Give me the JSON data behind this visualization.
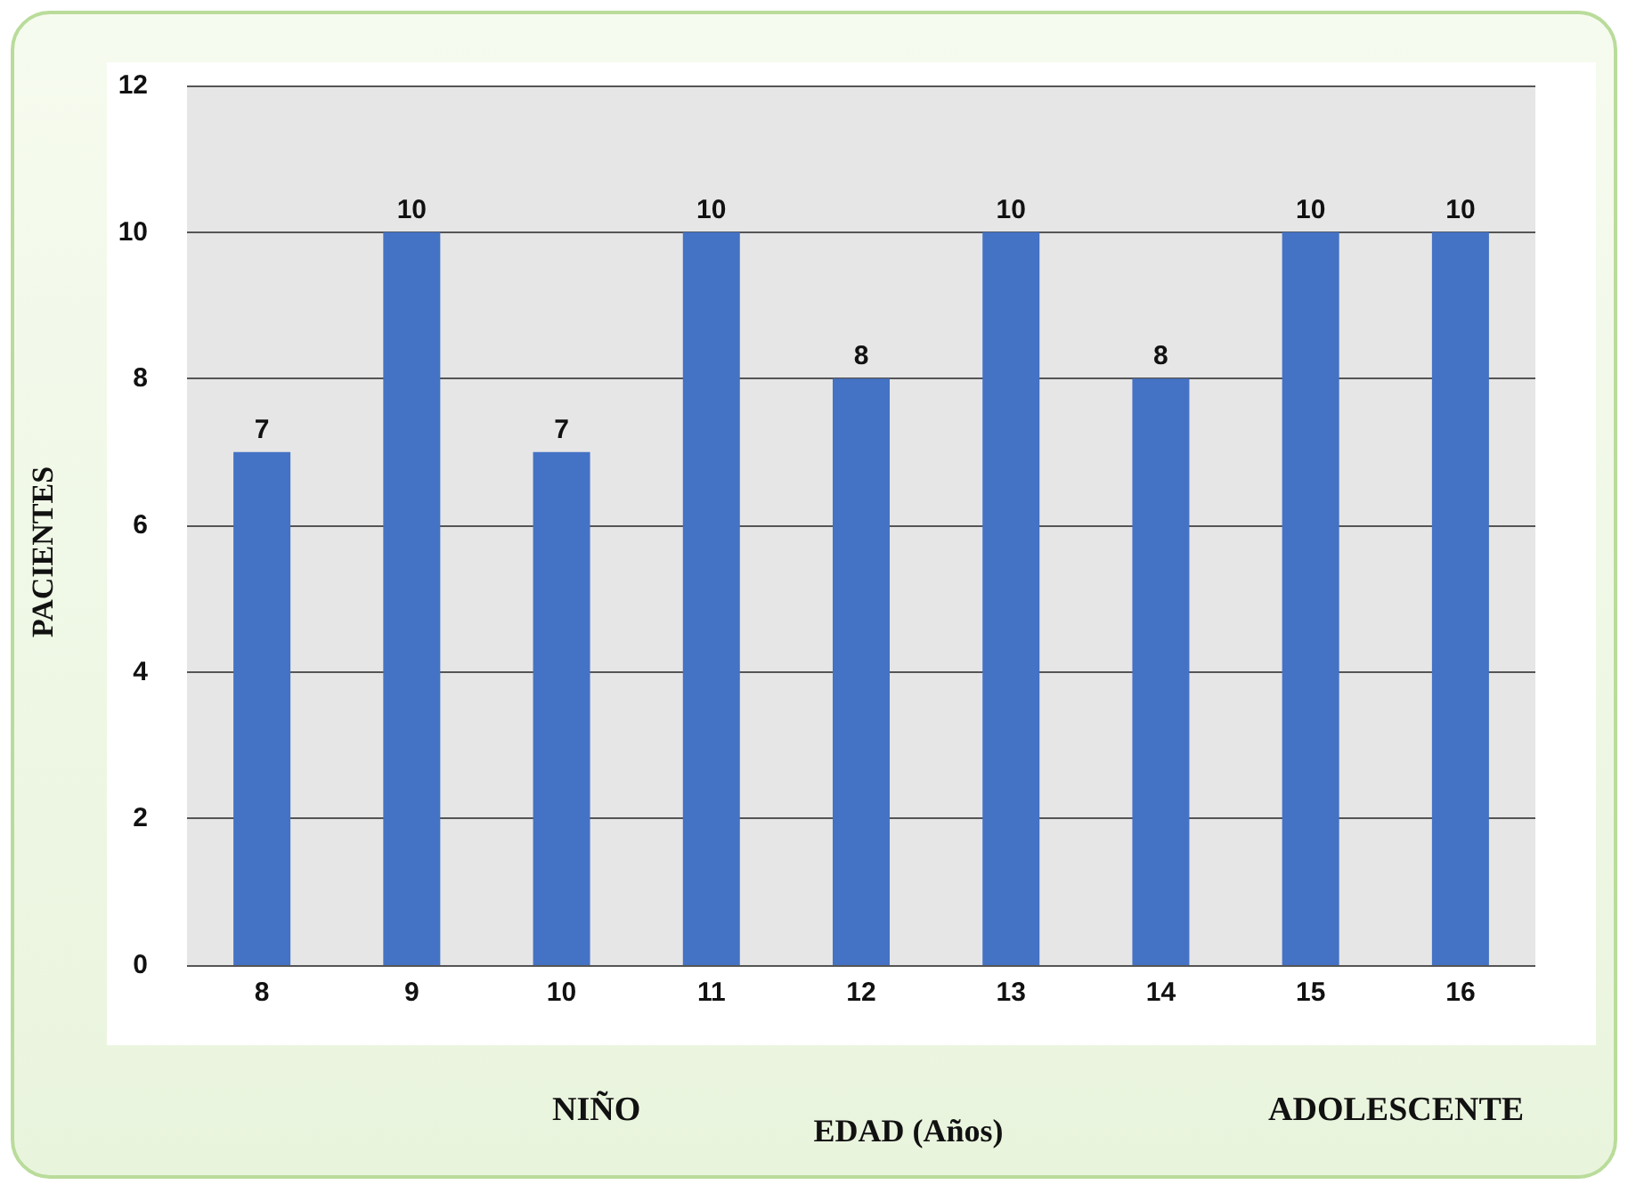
{
  "chart_data": {
    "type": "bar",
    "categories": [
      "8",
      "9",
      "10",
      "11",
      "12",
      "13",
      "14",
      "15",
      "16"
    ],
    "values": [
      7,
      10,
      7,
      10,
      8,
      10,
      8,
      10,
      10
    ],
    "color": "#4472c4",
    "ylim": [
      0,
      12
    ],
    "yticks": [
      0,
      2,
      4,
      6,
      8,
      10,
      12
    ],
    "grid": "y",
    "data_labels": true,
    "xlabel": "EDAD (Años)",
    "ylabel": "PACIENTES",
    "annotations": [
      "NIÑO",
      "ADOLESCENTE"
    ]
  }
}
